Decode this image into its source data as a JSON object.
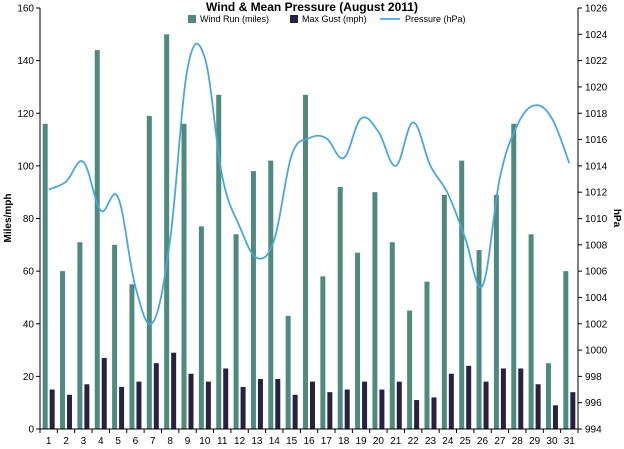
{
  "chart_data": {
    "type": "bar",
    "title": "Wind & Mean Pressure (August 2011)",
    "ylabel": "Miles/mph",
    "y2label": "hPa",
    "ylim": [
      0,
      160
    ],
    "y2lim": [
      994,
      1026
    ],
    "yticks": [
      0,
      20,
      40,
      60,
      80,
      100,
      120,
      140,
      160
    ],
    "y2ticks": [
      994,
      996,
      998,
      1000,
      1002,
      1004,
      1006,
      1008,
      1010,
      1012,
      1014,
      1016,
      1018,
      1020,
      1022,
      1024,
      1026
    ],
    "grid": false,
    "legend": "top",
    "categories": [
      "1",
      "2",
      "3",
      "4",
      "5",
      "6",
      "7",
      "8",
      "9",
      "10",
      "11",
      "12",
      "13",
      "14",
      "15",
      "16",
      "17",
      "18",
      "19",
      "20",
      "21",
      "22",
      "23",
      "24",
      "25",
      "26",
      "27",
      "28",
      "29",
      "30",
      "31"
    ],
    "series": [
      {
        "name": "Wind Run (miles)",
        "kind": "bar",
        "axis": "left",
        "color": "#4e8a7e",
        "values": [
          116,
          60,
          71,
          144,
          70,
          55,
          119,
          150,
          116,
          77,
          127,
          74,
          98,
          102,
          43,
          127,
          58,
          92,
          67,
          90,
          71,
          45,
          56,
          89,
          102,
          68,
          89,
          116,
          74,
          25,
          60
        ]
      },
      {
        "name": "Max Gust (mph)",
        "kind": "bar",
        "axis": "left",
        "color": "#2a2040",
        "values": [
          15,
          13,
          17,
          27,
          16,
          18,
          25,
          29,
          21,
          18,
          23,
          16,
          19,
          19,
          13,
          18,
          14,
          15,
          18,
          15,
          18,
          11,
          12,
          21,
          24,
          18,
          23,
          23,
          17,
          9,
          14
        ]
      },
      {
        "name": "Pressure (hPa)",
        "kind": "line",
        "axis": "right",
        "color": "#4aa8d4",
        "values": [
          1012.2,
          1012.8,
          1014.3,
          1010.6,
          1011.6,
          1004.8,
          1002.1,
          1008.4,
          1021.4,
          1022.2,
          1013.2,
          1009.4,
          1007.0,
          1008.4,
          1014.8,
          1016.1,
          1016.1,
          1014.6,
          1017.6,
          1016.6,
          1014.0,
          1017.3,
          1014.0,
          1011.9,
          1008.5,
          1004.9,
          1013.1,
          1017.1,
          1018.6,
          1017.6,
          1014.2
        ]
      }
    ]
  }
}
